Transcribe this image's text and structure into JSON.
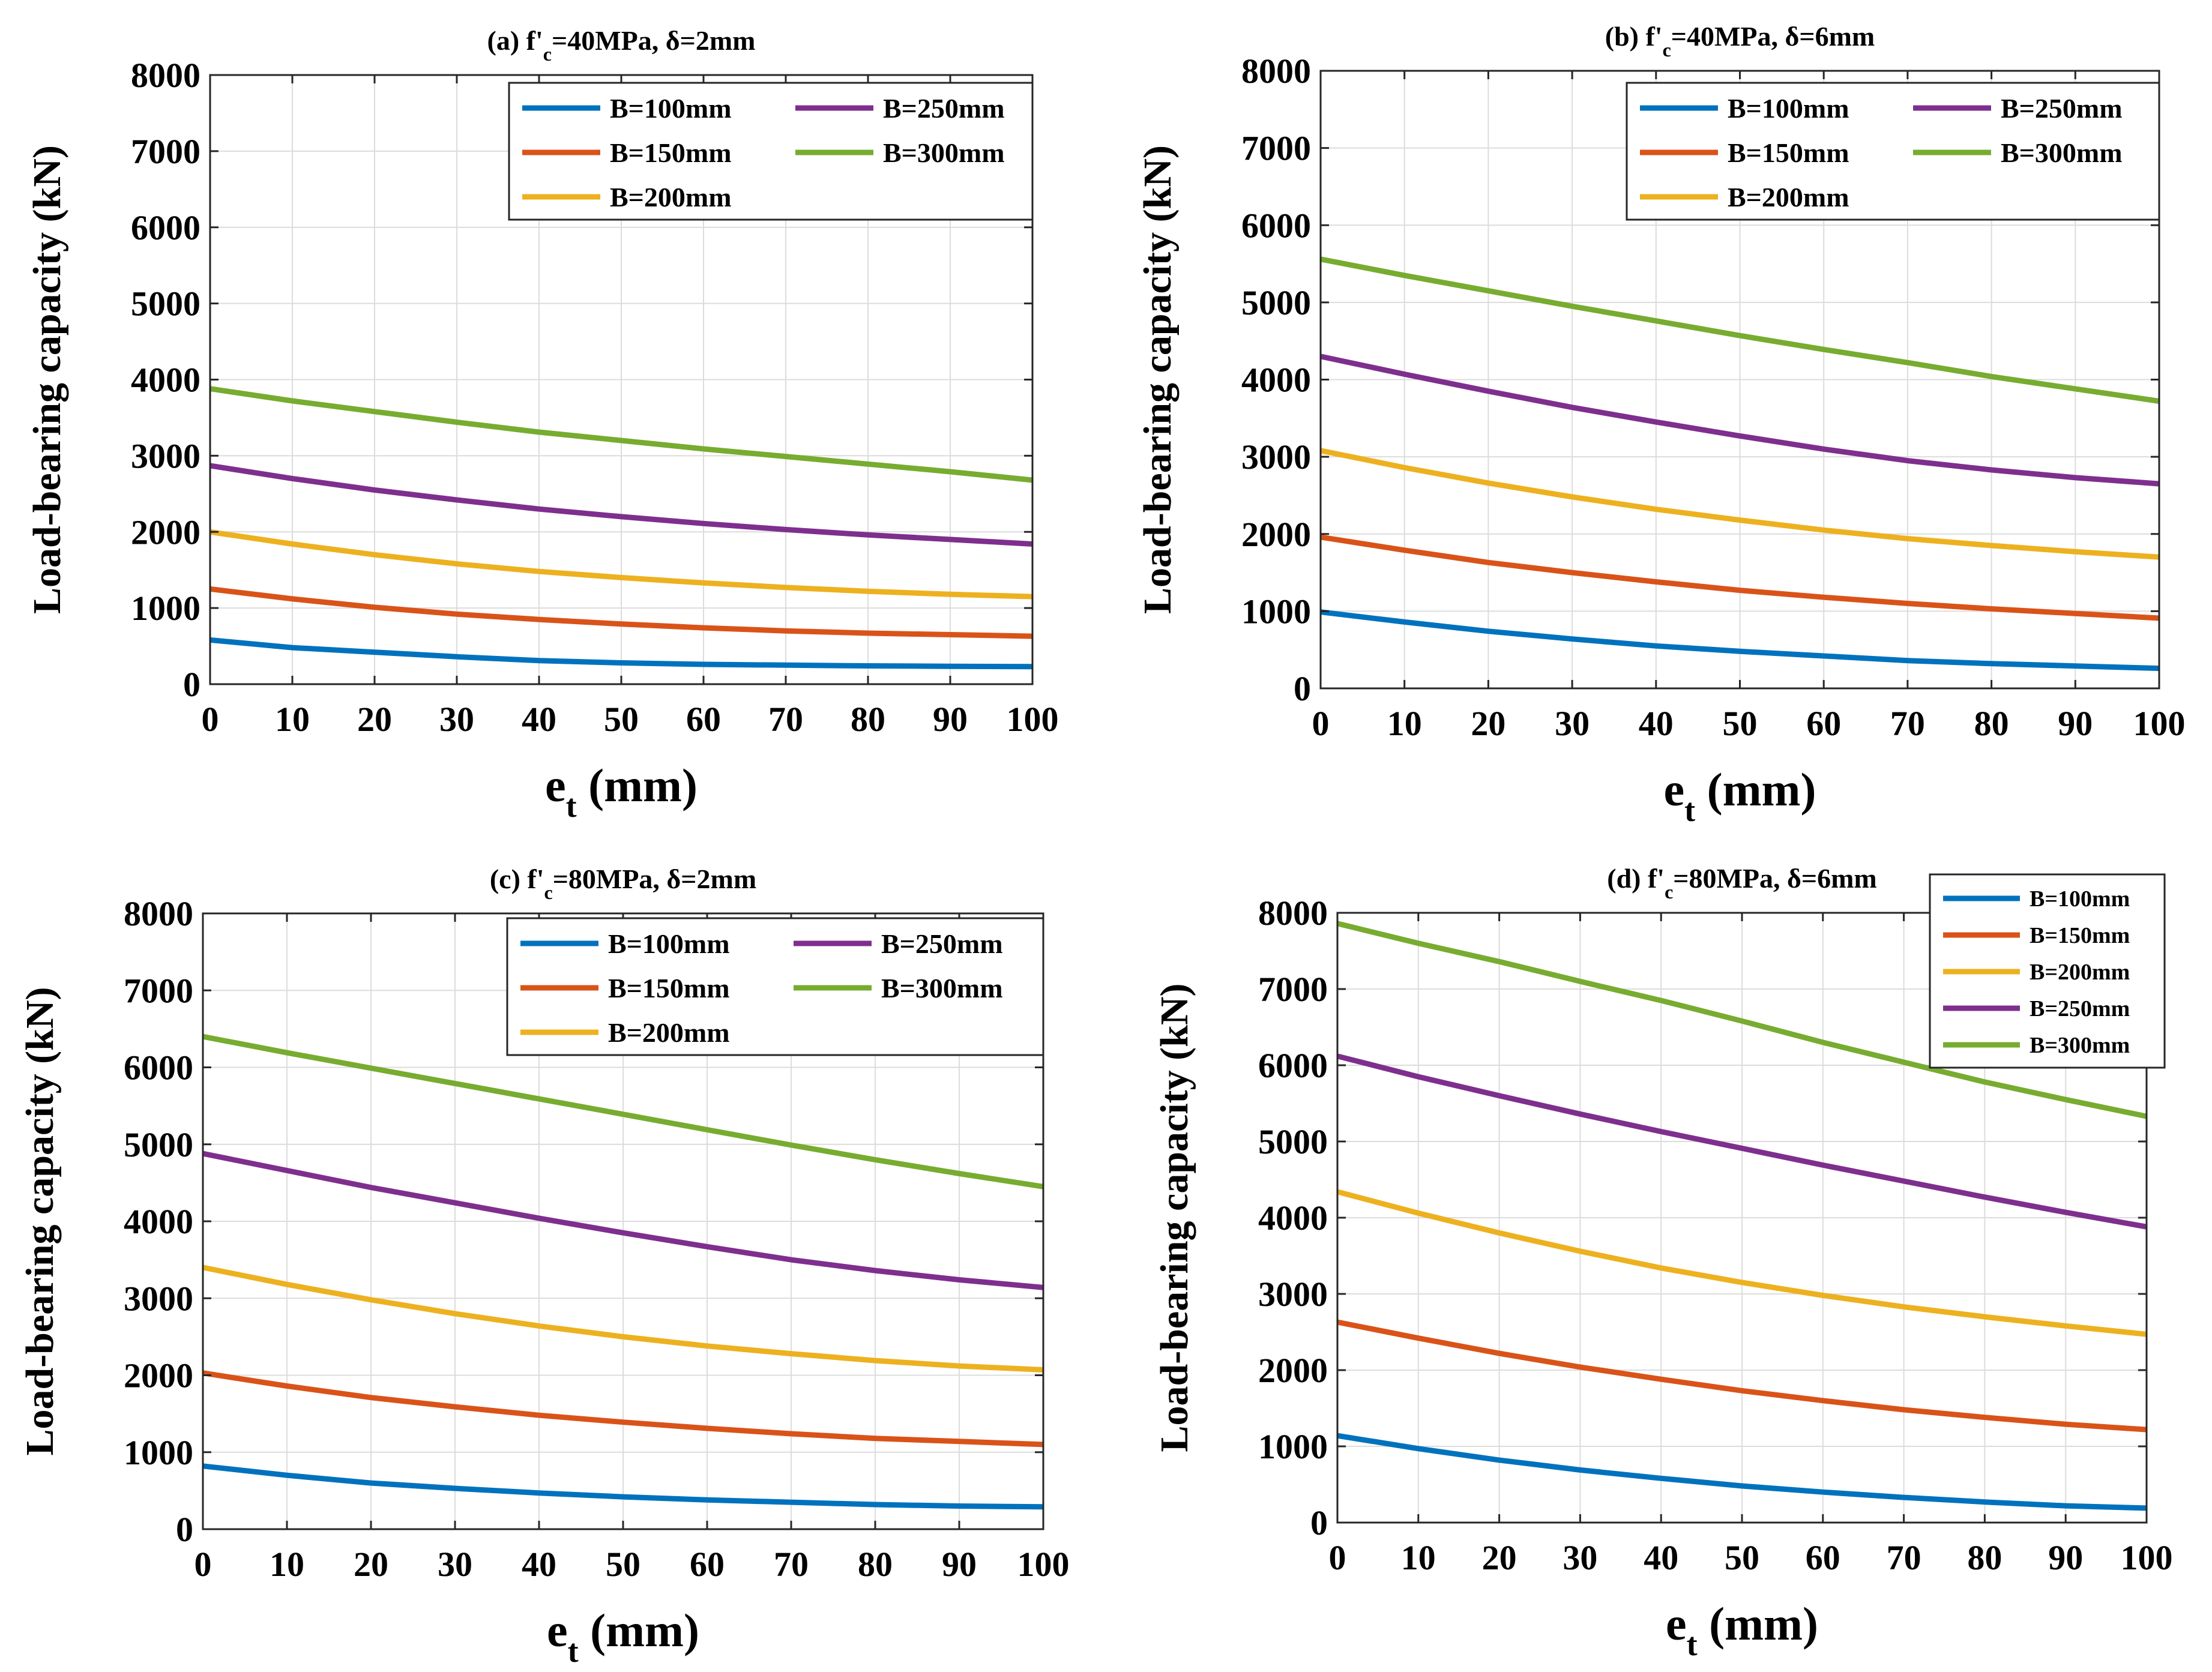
{
  "colors": {
    "B=100mm": "#0072BD",
    "B=150mm": "#D95319",
    "B=200mm": "#EDB120",
    "B=250mm": "#7E2F8E",
    "B=300mm": "#77AC30"
  },
  "chart_data": [
    {
      "type": "line",
      "title": {
        "prefix": "(a) f'",
        "sub": "c",
        "suffix": "=40MPa, δ=2mm"
      },
      "xlabel": {
        "main": "e",
        "sub": "t",
        "unit": " (mm)"
      },
      "ylabel": "Load-bearing capacity (kN)",
      "xlim": [
        0,
        100
      ],
      "ylim": [
        0,
        8000
      ],
      "xticks": [
        "0",
        "10",
        "20",
        "30",
        "40",
        "50",
        "60",
        "70",
        "80",
        "90",
        "100"
      ],
      "yticks": [
        "0",
        "1000",
        "2000",
        "3000",
        "4000",
        "5000",
        "6000",
        "7000",
        "8000"
      ],
      "grid": true,
      "legend": {
        "position": "top-right",
        "layout": "two-column"
      },
      "x": [
        0,
        10,
        20,
        30,
        40,
        50,
        60,
        70,
        80,
        90,
        100
      ],
      "series": [
        {
          "name": "B=100mm",
          "values": [
            580,
            480,
            420,
            360,
            310,
            280,
            260,
            250,
            240,
            235,
            230
          ]
        },
        {
          "name": "B=150mm",
          "values": [
            1250,
            1120,
            1010,
            920,
            850,
            790,
            740,
            700,
            670,
            650,
            630
          ]
        },
        {
          "name": "B=200mm",
          "values": [
            2000,
            1840,
            1700,
            1580,
            1480,
            1400,
            1330,
            1270,
            1220,
            1180,
            1150
          ]
        },
        {
          "name": "B=250mm",
          "values": [
            2870,
            2700,
            2550,
            2420,
            2300,
            2200,
            2110,
            2030,
            1960,
            1900,
            1840
          ]
        },
        {
          "name": "B=300mm",
          "values": [
            3880,
            3720,
            3580,
            3440,
            3310,
            3200,
            3090,
            2990,
            2890,
            2790,
            2680
          ]
        }
      ]
    },
    {
      "type": "line",
      "title": {
        "prefix": "(b) f'",
        "sub": "c",
        "suffix": "=40MPa, δ=6mm"
      },
      "xlabel": {
        "main": "e",
        "sub": "t",
        "unit": " (mm)"
      },
      "ylabel": "Load-bearing capacity (kN)",
      "xlim": [
        0,
        100
      ],
      "ylim": [
        0,
        8000
      ],
      "xticks": [
        "0",
        "10",
        "20",
        "30",
        "40",
        "50",
        "60",
        "70",
        "80",
        "90",
        "100"
      ],
      "yticks": [
        "0",
        "1000",
        "2000",
        "3000",
        "4000",
        "5000",
        "6000",
        "7000",
        "8000"
      ],
      "grid": true,
      "legend": {
        "position": "top-right",
        "layout": "two-column"
      },
      "x": [
        0,
        10,
        20,
        30,
        40,
        50,
        60,
        70,
        80,
        90,
        100
      ],
      "series": [
        {
          "name": "B=100mm",
          "values": [
            990,
            860,
            740,
            640,
            550,
            480,
            420,
            360,
            320,
            290,
            260
          ]
        },
        {
          "name": "B=150mm",
          "values": [
            1960,
            1790,
            1630,
            1500,
            1380,
            1270,
            1180,
            1100,
            1030,
            970,
            910
          ]
        },
        {
          "name": "B=200mm",
          "values": [
            3080,
            2860,
            2660,
            2480,
            2320,
            2180,
            2050,
            1940,
            1850,
            1770,
            1700
          ]
        },
        {
          "name": "B=250mm",
          "values": [
            4300,
            4070,
            3850,
            3640,
            3450,
            3270,
            3100,
            2950,
            2830,
            2730,
            2650
          ]
        },
        {
          "name": "B=300mm",
          "values": [
            5560,
            5350,
            5150,
            4950,
            4760,
            4570,
            4390,
            4220,
            4040,
            3880,
            3720
          ]
        }
      ]
    },
    {
      "type": "line",
      "title": {
        "prefix": "(c) f'",
        "sub": "c",
        "suffix": "=80MPa, δ=2mm"
      },
      "xlabel": {
        "main": "e",
        "sub": "t",
        "unit": " (mm)"
      },
      "ylabel": "Load-bearing capacity (kN)",
      "xlim": [
        0,
        100
      ],
      "ylim": [
        0,
        8000
      ],
      "xticks": [
        "0",
        "10",
        "20",
        "30",
        "40",
        "50",
        "60",
        "70",
        "80",
        "90",
        "100"
      ],
      "yticks": [
        "0",
        "1000",
        "2000",
        "3000",
        "4000",
        "5000",
        "6000",
        "7000",
        "8000"
      ],
      "grid": true,
      "legend": {
        "position": "top-right",
        "layout": "two-column"
      },
      "x": [
        0,
        10,
        20,
        30,
        40,
        50,
        60,
        70,
        80,
        90,
        100
      ],
      "series": [
        {
          "name": "B=100mm",
          "values": [
            820,
            700,
            600,
            530,
            470,
            420,
            380,
            350,
            320,
            300,
            290
          ]
        },
        {
          "name": "B=150mm",
          "values": [
            2030,
            1860,
            1710,
            1590,
            1480,
            1390,
            1310,
            1240,
            1180,
            1140,
            1100
          ]
        },
        {
          "name": "B=200mm",
          "values": [
            3400,
            3180,
            2980,
            2800,
            2640,
            2500,
            2380,
            2280,
            2190,
            2120,
            2070
          ]
        },
        {
          "name": "B=250mm",
          "values": [
            4880,
            4660,
            4440,
            4240,
            4040,
            3850,
            3670,
            3500,
            3360,
            3240,
            3140
          ]
        },
        {
          "name": "B=300mm",
          "values": [
            6400,
            6190,
            5990,
            5790,
            5590,
            5390,
            5190,
            4990,
            4800,
            4620,
            4450
          ]
        }
      ]
    },
    {
      "type": "line",
      "title": {
        "prefix": "(d) f'",
        "sub": "c",
        "suffix": "=80MPa, δ=6mm"
      },
      "xlabel": {
        "main": "e",
        "sub": "t",
        "unit": " (mm)"
      },
      "ylabel": "Load-bearing capacity (kN)",
      "xlim": [
        0,
        100
      ],
      "ylim": [
        0,
        8000
      ],
      "xticks": [
        "0",
        "10",
        "20",
        "30",
        "40",
        "50",
        "60",
        "70",
        "80",
        "90",
        "100"
      ],
      "yticks": [
        "0",
        "1000",
        "2000",
        "3000",
        "4000",
        "5000",
        "6000",
        "7000",
        "8000"
      ],
      "grid": true,
      "legend": {
        "position": "top-right",
        "layout": "single-column"
      },
      "x": [
        0,
        10,
        20,
        30,
        40,
        50,
        60,
        70,
        80,
        90,
        100
      ],
      "series": [
        {
          "name": "B=100mm",
          "values": [
            1140,
            970,
            820,
            690,
            580,
            480,
            400,
            330,
            270,
            220,
            190
          ]
        },
        {
          "name": "B=150mm",
          "values": [
            2630,
            2420,
            2220,
            2040,
            1880,
            1730,
            1600,
            1480,
            1380,
            1290,
            1220
          ]
        },
        {
          "name": "B=200mm",
          "values": [
            4340,
            4060,
            3800,
            3560,
            3340,
            3150,
            2980,
            2830,
            2700,
            2580,
            2470
          ]
        },
        {
          "name": "B=250mm",
          "values": [
            6120,
            5850,
            5600,
            5360,
            5130,
            4910,
            4690,
            4480,
            4270,
            4070,
            3880
          ]
        },
        {
          "name": "B=300mm",
          "values": [
            7860,
            7600,
            7360,
            7100,
            6850,
            6580,
            6300,
            6040,
            5780,
            5550,
            5330
          ]
        }
      ]
    }
  ]
}
